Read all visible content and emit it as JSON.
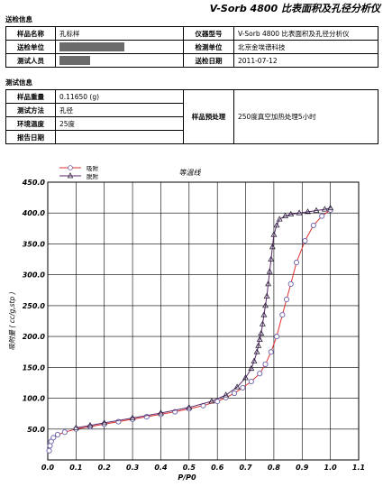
{
  "header": {
    "title": "V-Sorb 4800 比表面积及孔径分析仪"
  },
  "sample_section": {
    "title": "送检信息",
    "rows": [
      {
        "l1": "样品名称",
        "v1": "孔标样",
        "l2": "仪器型号",
        "v2": "V-Sorb 4800 比表面积及孔径分析仪"
      },
      {
        "l1": "送检单位",
        "v1": "",
        "l2": "检测单位",
        "v2": "北京金埃谱科技"
      },
      {
        "l1": "测试人员",
        "v1": "",
        "l2": "送检日期",
        "v2": "2011-07-12"
      }
    ]
  },
  "test_section": {
    "title": "测试信息",
    "rows": [
      {
        "l": "样品重量",
        "v": "0.11650 (g)"
      },
      {
        "l": "测试方法",
        "v": "孔径"
      },
      {
        "l": "环境温度",
        "v": "25度"
      },
      {
        "l": "报告日期",
        "v": ""
      }
    ],
    "pretreat_label": "样品预处理",
    "pretreat_value": "250度真空加热处理5小时"
  },
  "chart_data": {
    "type": "line",
    "title": "等温线",
    "xlabel": "P/P0",
    "ylabel": "吸附量 ( cc/g,stp )",
    "xlim": [
      0.0,
      1.1
    ],
    "ylim": [
      0,
      450
    ],
    "xticks": [
      "0.0",
      "0.1",
      "0.2",
      "0.3",
      "0.4",
      "0.5",
      "0.6",
      "0.7",
      "0.8",
      "0.9",
      "1.0",
      "1.1"
    ],
    "yticks": [
      "50.0",
      "100.0",
      "150.0",
      "200.0",
      "250.0",
      "300.0",
      "350.0",
      "400.0",
      "450.0"
    ],
    "grid": true,
    "legend_position": "top-left",
    "series": [
      {
        "name": "吸附",
        "color": "#e03030",
        "marker": "circle",
        "x": [
          0.005,
          0.008,
          0.012,
          0.02,
          0.035,
          0.06,
          0.1,
          0.15,
          0.2,
          0.25,
          0.3,
          0.35,
          0.4,
          0.45,
          0.5,
          0.55,
          0.6,
          0.63,
          0.66,
          0.69,
          0.72,
          0.75,
          0.77,
          0.79,
          0.81,
          0.83,
          0.845,
          0.86,
          0.88,
          0.91,
          0.94,
          0.97,
          1.0
        ],
        "y": [
          15,
          23,
          30,
          36,
          41,
          45,
          50,
          54,
          58,
          62,
          66,
          70,
          74,
          78,
          83,
          88,
          95,
          101,
          108,
          117,
          127,
          140,
          155,
          175,
          200,
          235,
          260,
          285,
          320,
          355,
          380,
          395,
          405
        ]
      },
      {
        "name": "脱附",
        "color": "#5a2a6a",
        "marker": "triangle",
        "x": [
          1.0,
          0.98,
          0.95,
          0.92,
          0.89,
          0.86,
          0.84,
          0.82,
          0.81,
          0.8,
          0.795,
          0.79,
          0.785,
          0.78,
          0.775,
          0.77,
          0.765,
          0.76,
          0.755,
          0.75,
          0.745,
          0.74,
          0.73,
          0.72,
          0.7,
          0.67,
          0.63,
          0.58,
          0.5,
          0.4,
          0.3,
          0.2,
          0.15,
          0.1
        ],
        "y": [
          408,
          406,
          404,
          402,
          400,
          398,
          395,
          390,
          380,
          365,
          345,
          325,
          305,
          285,
          265,
          250,
          235,
          220,
          205,
          195,
          185,
          175,
          160,
          148,
          133,
          118,
          105,
          95,
          85,
          76,
          68,
          60,
          56,
          52
        ]
      }
    ]
  }
}
